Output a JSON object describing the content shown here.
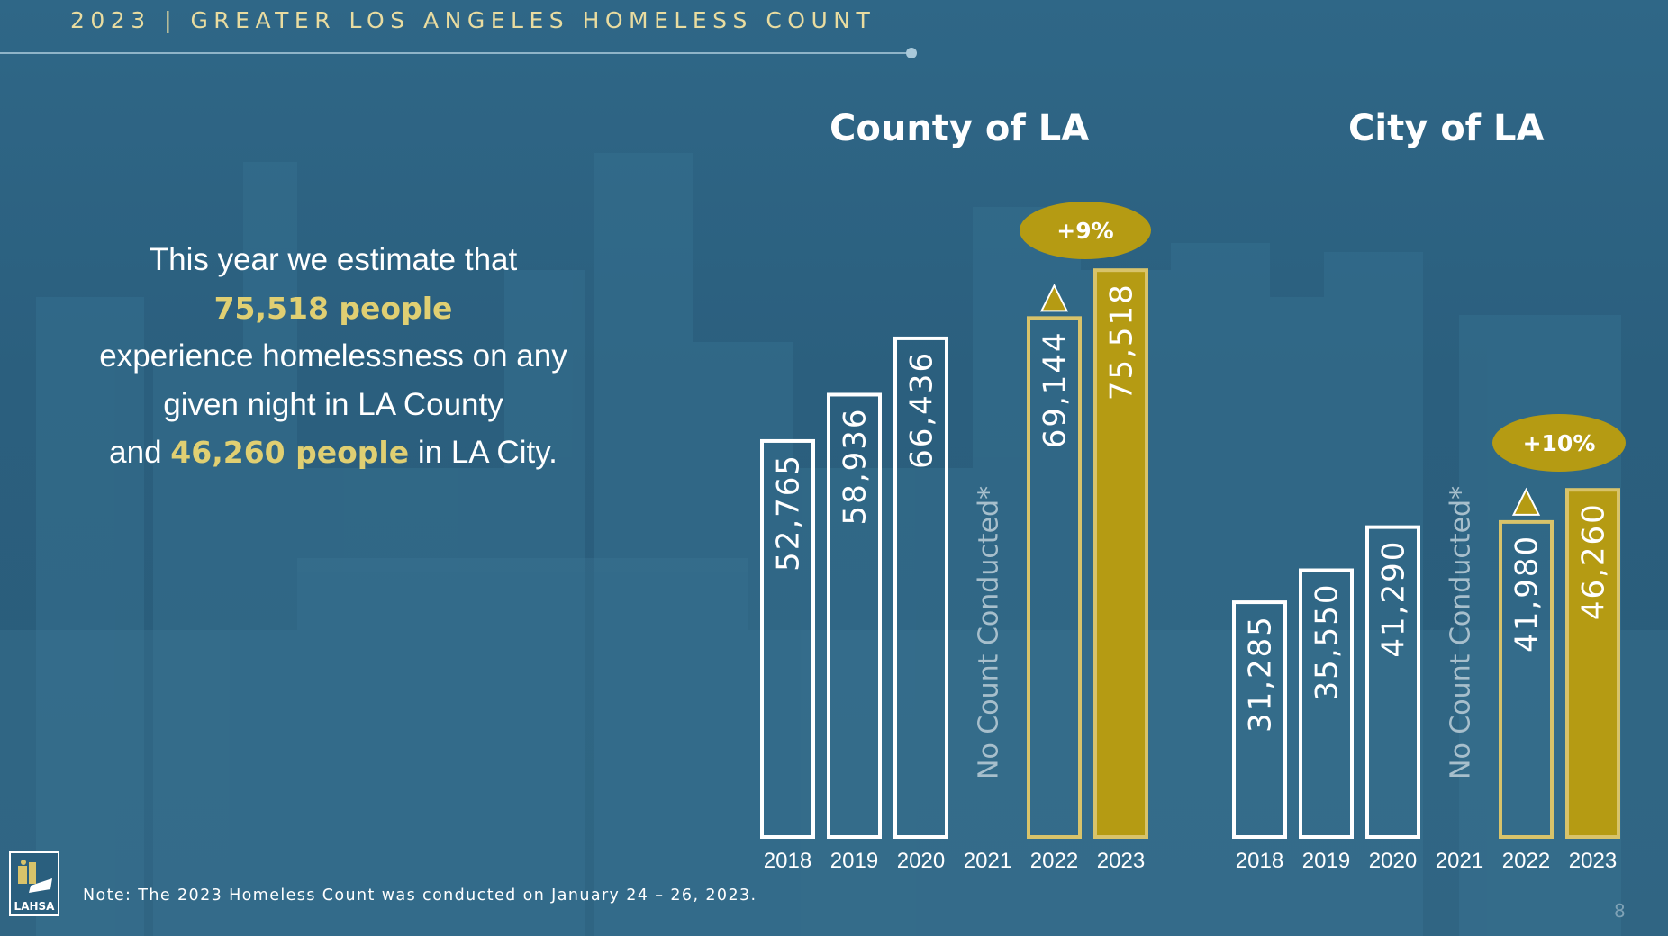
{
  "header": {
    "title": "2023 | GREATER LOS ANGELES HOMELESS COUNT"
  },
  "intro": {
    "line1": "This year we estimate that",
    "county_count": "75,518 people",
    "line3": "experience homelessness on any",
    "line4": "given night in LA County",
    "line5_prefix": "and",
    "city_count": "46,260 people",
    "line5_suffix": "in LA City."
  },
  "footer": {
    "note": "Note: The 2023 Homeless Count was conducted on January 24 – 26, 2023.",
    "logo_text": "LAHSA",
    "page_number": "8"
  },
  "colors": {
    "gold": "#b59b13",
    "gold_outline": "#d8c36a",
    "white": "#ffffff",
    "muted_text": "#a7bfcc"
  },
  "chart_data": [
    {
      "type": "bar",
      "title": "County of LA",
      "categories": [
        "2018",
        "2019",
        "2020",
        "2021",
        "2022",
        "2023"
      ],
      "values": [
        52765,
        58936,
        66436,
        null,
        69144,
        75518
      ],
      "value_labels": [
        "52,765",
        "58,936",
        "66,436",
        "",
        "69,144",
        "75,518"
      ],
      "styles": [
        "outline-white",
        "outline-white",
        "outline-white",
        "none",
        "outline-gold",
        "filled-gold"
      ],
      "missing_label": "No Count Conducted*",
      "change_label": "+9%",
      "ylim": [
        0,
        80000
      ],
      "xlabel": "",
      "ylabel": ""
    },
    {
      "type": "bar",
      "title": "City of LA",
      "categories": [
        "2018",
        "2019",
        "2020",
        "2021",
        "2022",
        "2023"
      ],
      "values": [
        31285,
        35550,
        41290,
        null,
        41980,
        46260
      ],
      "value_labels": [
        "31,285",
        "35,550",
        "41,290",
        "",
        "41,980",
        "46,260"
      ],
      "styles": [
        "outline-white",
        "outline-white",
        "outline-white",
        "none",
        "outline-gold",
        "filled-gold"
      ],
      "missing_label": "No Count Conducted*",
      "change_label": "+10%",
      "ylim": [
        0,
        80000
      ],
      "xlabel": "",
      "ylabel": ""
    }
  ]
}
